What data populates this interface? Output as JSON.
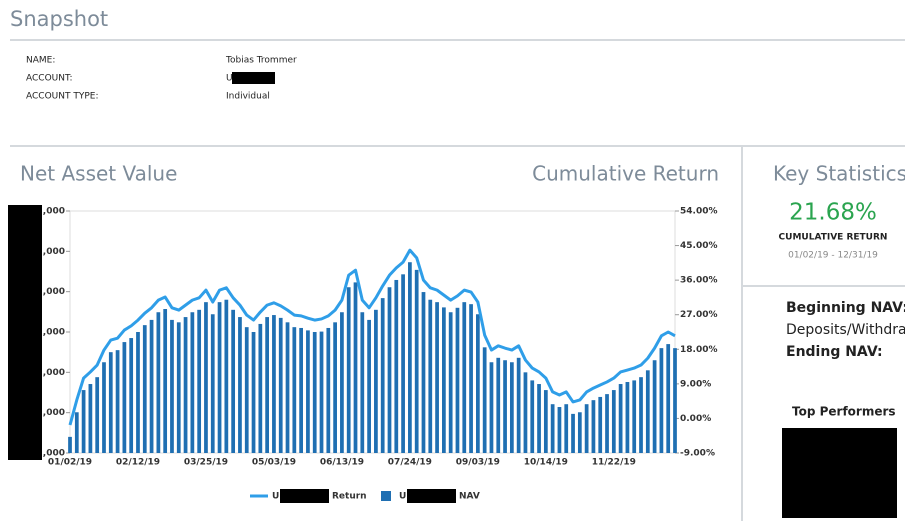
{
  "snapshot": {
    "title": "Snapshot",
    "fields": [
      {
        "label": "NAME:",
        "value": "Tobias Trommer"
      },
      {
        "label": "ACCOUNT:",
        "value": "U"
      },
      {
        "label": "ACCOUNT TYPE:",
        "value": "Individual"
      }
    ]
  },
  "chart_data": {
    "type": "bar_line",
    "title": "Net Asset Value",
    "y2_title": "Cumulative Return",
    "categories": [
      "01/02/19",
      null,
      null,
      null,
      null,
      null,
      null,
      null,
      null,
      null,
      "02/12/19",
      null,
      null,
      null,
      null,
      null,
      null,
      null,
      null,
      null,
      "03/25/19",
      null,
      null,
      null,
      null,
      null,
      null,
      null,
      null,
      null,
      "05/03/19",
      null,
      null,
      null,
      null,
      null,
      null,
      null,
      null,
      null,
      "06/13/19",
      null,
      null,
      null,
      null,
      null,
      null,
      null,
      null,
      null,
      "07/24/19",
      null,
      null,
      null,
      null,
      null,
      null,
      null,
      null,
      null,
      "09/03/19",
      null,
      null,
      null,
      null,
      null,
      null,
      null,
      null,
      null,
      "10/14/19",
      null,
      null,
      null,
      null,
      null,
      null,
      null,
      null,
      null,
      "11/22/19",
      null,
      null,
      null,
      null,
      null,
      null,
      null,
      null,
      null
    ],
    "series": [
      {
        "name": "Return",
        "type": "line",
        "axis": "y2",
        "color": "#2f9ee8",
        "values": [
          -1.7,
          4.8,
          10.5,
          12.1,
          13.9,
          17.8,
          20.4,
          20.9,
          23.0,
          24.1,
          25.6,
          27.4,
          28.8,
          30.8,
          31.6,
          28.8,
          28.2,
          29.5,
          30.8,
          31.4,
          33.4,
          30.3,
          33.4,
          34.0,
          31.4,
          29.5,
          26.9,
          25.6,
          27.7,
          29.5,
          30.1,
          29.3,
          28.2,
          26.9,
          26.7,
          26.1,
          25.6,
          25.9,
          26.7,
          28.2,
          30.8,
          37.3,
          38.6,
          30.8,
          28.8,
          31.4,
          34.5,
          37.3,
          39.2,
          40.7,
          43.8,
          41.8,
          36.0,
          34.0,
          33.4,
          32.1,
          30.8,
          31.9,
          33.4,
          32.9,
          30.3,
          21.7,
          17.8,
          18.9,
          18.3,
          17.8,
          18.9,
          15.2,
          13.1,
          12.1,
          10.5,
          6.9,
          6.1,
          6.9,
          4.3,
          4.8,
          6.9,
          7.9,
          8.7,
          9.5,
          10.5,
          12.1,
          12.6,
          13.1,
          13.9,
          15.7,
          18.3,
          21.5,
          22.5,
          21.5
        ]
      },
      {
        "name": "NAV",
        "type": "bar",
        "axis": "y",
        "color": "#1f6fb2",
        "values": [
          0.4,
          1.01,
          1.56,
          1.71,
          1.88,
          2.25,
          2.5,
          2.55,
          2.75,
          2.85,
          3.0,
          3.17,
          3.3,
          3.49,
          3.57,
          3.3,
          3.24,
          3.37,
          3.49,
          3.55,
          3.74,
          3.44,
          3.74,
          3.8,
          3.55,
          3.37,
          3.12,
          3.0,
          3.2,
          3.37,
          3.42,
          3.35,
          3.24,
          3.12,
          3.1,
          3.04,
          3.0,
          3.01,
          3.1,
          3.24,
          3.49,
          4.11,
          4.23,
          3.49,
          3.3,
          3.55,
          3.84,
          4.11,
          4.29,
          4.43,
          4.73,
          4.54,
          3.99,
          3.8,
          3.74,
          3.61,
          3.49,
          3.6,
          3.74,
          3.69,
          3.44,
          2.62,
          2.25,
          2.36,
          2.3,
          2.25,
          2.36,
          2.0,
          1.8,
          1.71,
          1.56,
          1.21,
          1.14,
          1.21,
          0.97,
          1.01,
          1.21,
          1.31,
          1.39,
          1.46,
          1.56,
          1.71,
          1.76,
          1.8,
          1.88,
          2.05,
          2.3,
          2.6,
          2.7,
          2.6
        ]
      }
    ],
    "ylim": [
      0,
      6
    ],
    "yticks": [
      {
        "value": 0,
        "label": ",000"
      },
      {
        "value": 1,
        "label": ",000"
      },
      {
        "value": 2,
        "label": ",000"
      },
      {
        "value": 3,
        "label": ",000"
      },
      {
        "value": 4,
        "label": ",000"
      },
      {
        "value": 5,
        "label": ",000"
      },
      {
        "value": 6,
        "label": ",000"
      }
    ],
    "y2lim": [
      -9,
      54
    ],
    "y2ticks": [
      {
        "value": -9,
        "label": "-9.00%"
      },
      {
        "value": 0,
        "label": "0.00%"
      },
      {
        "value": 9,
        "label": "9.00%"
      },
      {
        "value": 18,
        "label": "18.00%"
      },
      {
        "value": 27,
        "label": "27.00%"
      },
      {
        "value": 36,
        "label": "36.00%"
      },
      {
        "value": 45,
        "label": "45.00%"
      },
      {
        "value": 54,
        "label": "54.00%"
      }
    ],
    "legend": "bottom"
  },
  "key_statistics": {
    "title": "Key Statistics",
    "cumulative_return": "21.68%",
    "cumulative_return_label": "CUMULATIVE RETURN",
    "period": "01/02/19 - 12/31/19",
    "rows": [
      "Beginning NAV:",
      "Deposits/Withdraw",
      "Ending NAV:"
    ],
    "top_performers": "Top Performers"
  }
}
